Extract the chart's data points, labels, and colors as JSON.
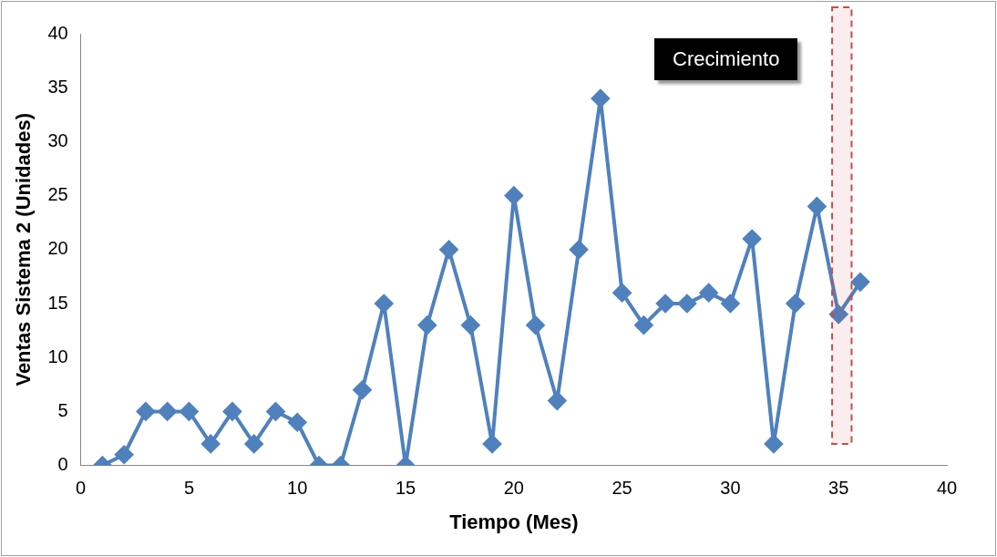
{
  "chart_data": {
    "type": "line",
    "xlabel": "Tiempo (Mes)",
    "ylabel": "Ventas Sistema 2 (Unidades)",
    "x": [
      1,
      2,
      3,
      4,
      5,
      6,
      7,
      8,
      9,
      10,
      11,
      12,
      13,
      14,
      15,
      16,
      17,
      18,
      19,
      20,
      21,
      22,
      23,
      24,
      25,
      26,
      27,
      28,
      29,
      30,
      31,
      32,
      33,
      34,
      35,
      36
    ],
    "series": [
      {
        "color": "#4f81bd",
        "values": [
          0,
          1,
          5,
          5,
          5,
          2,
          5,
          2,
          5,
          4,
          0,
          0,
          7,
          15,
          0,
          13,
          20,
          13,
          2,
          25,
          13,
          6,
          20,
          34,
          16,
          13,
          15,
          15,
          16,
          15,
          21,
          2,
          15,
          24,
          14,
          17
        ]
      }
    ],
    "xlim": [
      0,
      40
    ],
    "xticks": [
      0,
      5,
      10,
      15,
      20,
      25,
      30,
      35,
      40
    ],
    "ylim": [
      0,
      40
    ],
    "yticks": [
      0,
      5,
      10,
      15,
      20,
      25,
      30,
      35,
      40
    ],
    "marker": "diamond",
    "line_style": "solid",
    "grid": false,
    "legend": false,
    "bands": [
      {
        "axis": "x",
        "from": 34.7,
        "to": 35.6,
        "color": "#c0504d"
      }
    ],
    "annotations": [
      "Crecimiento"
    ]
  }
}
